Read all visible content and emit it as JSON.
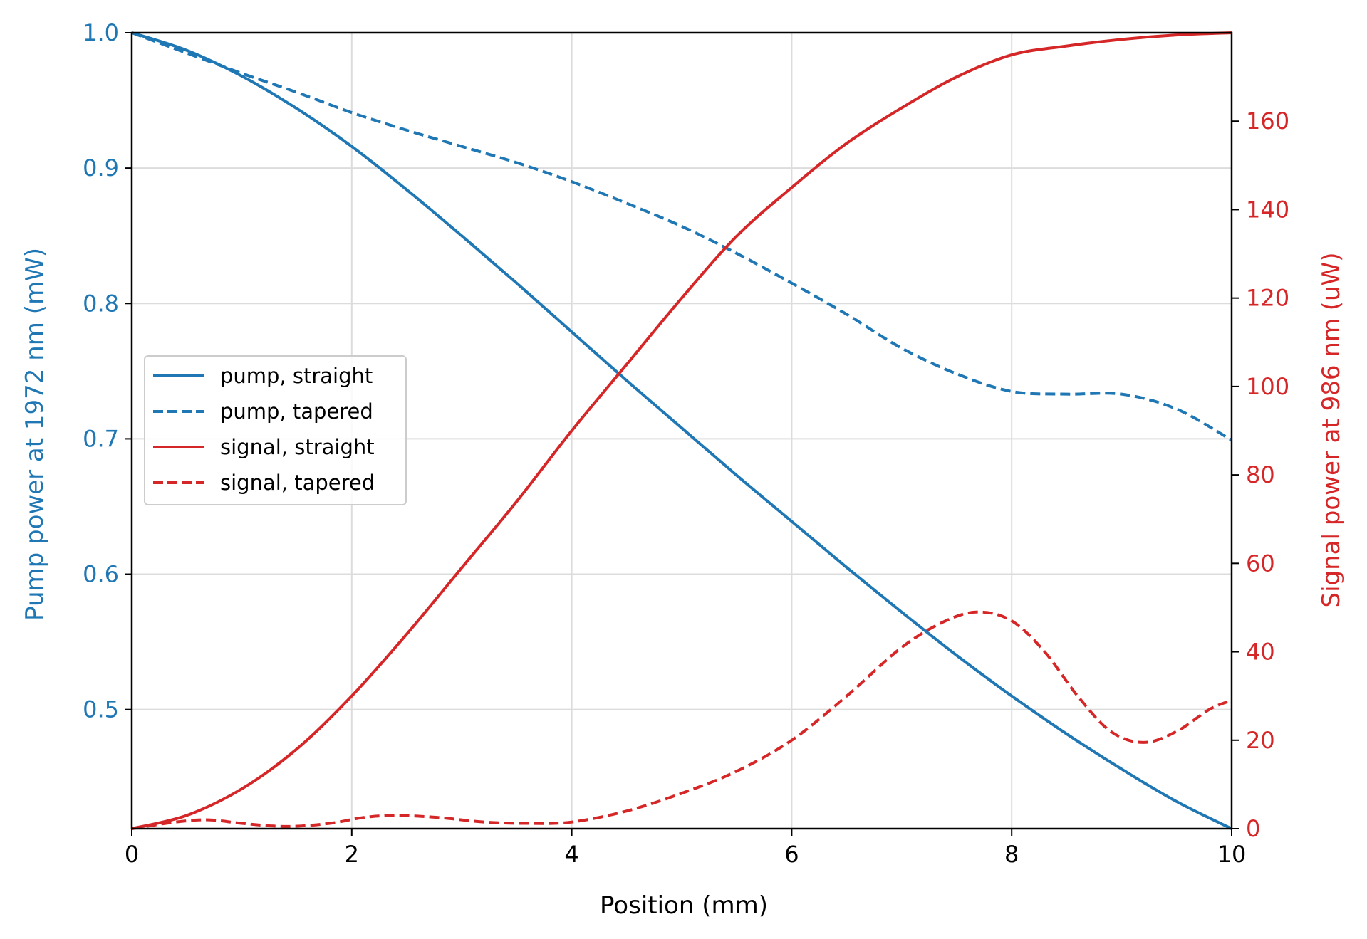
{
  "colors": {
    "pump": "#1f77b4",
    "signal": "#d62728",
    "axis": "#000000",
    "grid": "#dcdcdc"
  },
  "chart_data": {
    "type": "line",
    "title": "",
    "xlabel": "Position (mm)",
    "ylabel_left": "Pump power at 1972 nm (mW)",
    "ylabel_right": "Signal power at 986 nm (uW)",
    "xlim": [
      0,
      10
    ],
    "ylim_left": [
      0.412,
      1.0
    ],
    "ylim_right": [
      0,
      180
    ],
    "x_ticks": [
      0,
      2,
      4,
      6,
      8,
      10
    ],
    "x_tick_labels": [
      "0",
      "2",
      "4",
      "6",
      "8",
      "10"
    ],
    "y_left_ticks": [
      0.5,
      0.6,
      0.7,
      0.8,
      0.9,
      1.0
    ],
    "y_left_tick_labels": [
      "0.5",
      "0.6",
      "0.7",
      "0.8",
      "0.9",
      "1.0"
    ],
    "y_right_ticks": [
      0,
      20,
      40,
      60,
      80,
      100,
      120,
      140,
      160
    ],
    "y_right_tick_labels": [
      "0",
      "20",
      "40",
      "60",
      "80",
      "100",
      "120",
      "140",
      "160"
    ],
    "grid": true,
    "legend_position": "center-left",
    "series": [
      {
        "name": "pump, straight",
        "axis": "left",
        "style": "solid",
        "color": "#1f77b4",
        "x": [
          0,
          0.5,
          1,
          1.5,
          2,
          2.5,
          3,
          3.5,
          4,
          4.5,
          5,
          5.5,
          6,
          6.5,
          7,
          7.5,
          8,
          8.5,
          9,
          9.5,
          10
        ],
        "y": [
          1.0,
          0.987,
          0.968,
          0.944,
          0.916,
          0.884,
          0.85,
          0.815,
          0.779,
          0.743,
          0.708,
          0.673,
          0.639,
          0.605,
          0.572,
          0.54,
          0.51,
          0.482,
          0.456,
          0.432,
          0.412
        ]
      },
      {
        "name": "pump, tapered",
        "axis": "left",
        "style": "dashed",
        "color": "#1f77b4",
        "x": [
          0,
          0.5,
          1,
          1.5,
          2,
          2.5,
          3,
          3.5,
          4,
          4.5,
          5,
          5.5,
          6,
          6.5,
          7,
          7.5,
          8,
          8.5,
          9,
          9.5,
          10
        ],
        "y": [
          1.0,
          0.985,
          0.97,
          0.956,
          0.941,
          0.928,
          0.916,
          0.904,
          0.89,
          0.874,
          0.857,
          0.837,
          0.815,
          0.792,
          0.767,
          0.748,
          0.735,
          0.733,
          0.733,
          0.722,
          0.699
        ]
      },
      {
        "name": "signal, straight",
        "axis": "right",
        "style": "solid",
        "color": "#d62728",
        "x": [
          0,
          0.5,
          1,
          1.5,
          2,
          2.5,
          3,
          3.5,
          4,
          4.5,
          5,
          5.5,
          6,
          6.5,
          7,
          7.5,
          8,
          8.5,
          9,
          9.5,
          10
        ],
        "y": [
          0,
          3,
          9,
          18,
          30,
          44,
          59,
          74,
          90,
          105,
          120,
          134,
          145,
          155,
          163,
          170,
          175,
          177,
          178.5,
          179.5,
          180
        ]
      },
      {
        "name": "signal, tapered",
        "axis": "right",
        "style": "dashed",
        "color": "#d62728",
        "x": [
          0,
          0.4,
          0.7,
          1.0,
          1.4,
          1.8,
          2.1,
          2.4,
          2.8,
          3.2,
          3.6,
          4.0,
          4.5,
          5.0,
          5.5,
          6.0,
          6.5,
          7.0,
          7.4,
          7.7,
          8.0,
          8.3,
          8.6,
          8.9,
          9.2,
          9.5,
          9.8,
          10.0
        ],
        "y": [
          0,
          1.5,
          2,
          1.2,
          0.5,
          1.2,
          2.5,
          3,
          2.5,
          1.5,
          1.2,
          1.5,
          4,
          8,
          13,
          20,
          30,
          41,
          47,
          49,
          47,
          40,
          30,
          22,
          19.5,
          22,
          27,
          29
        ]
      }
    ]
  }
}
